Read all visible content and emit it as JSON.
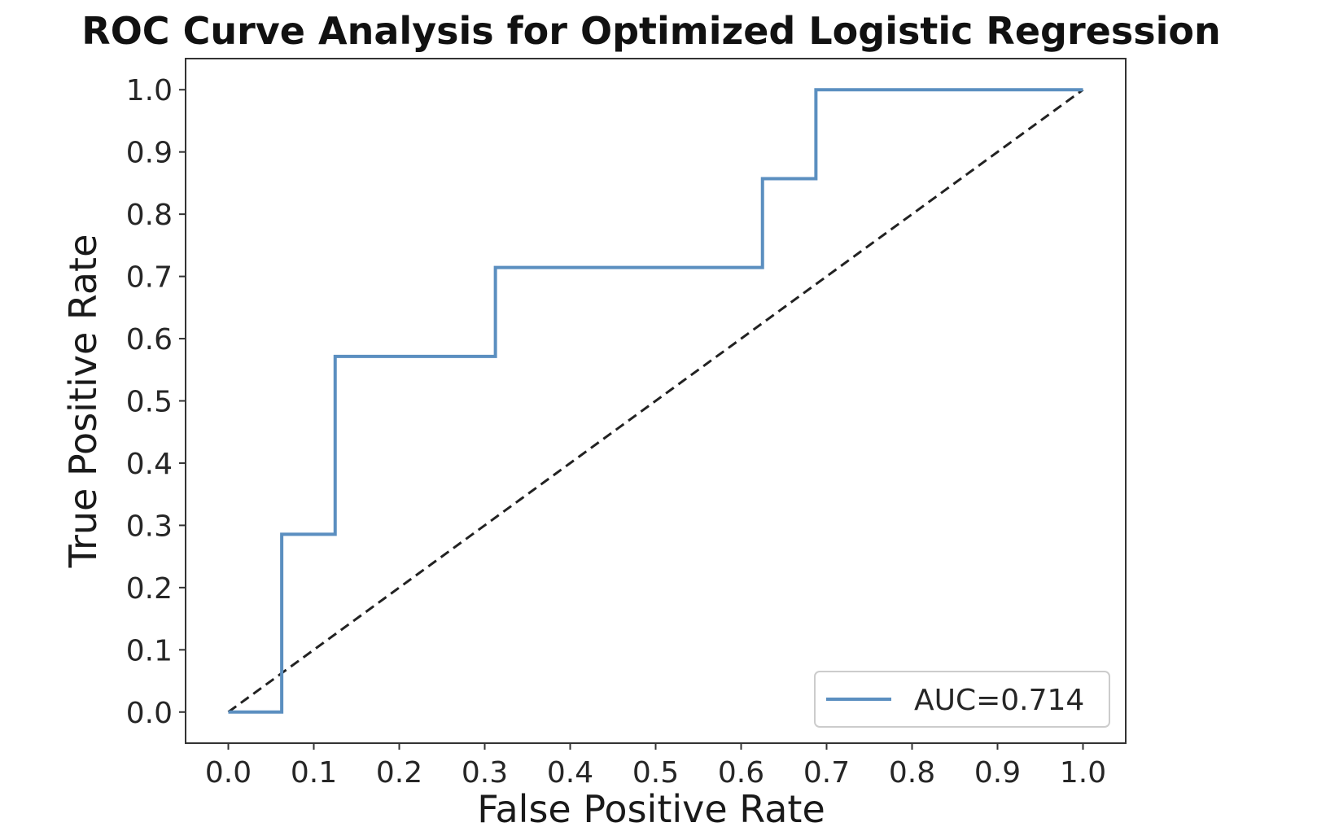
{
  "chart_data": {
    "type": "line",
    "title": "ROC Curve Analysis for Optimized Logistic Regression",
    "xlabel": "False Positive Rate",
    "ylabel": "True Positive Rate",
    "xlim": [
      -0.05,
      1.05
    ],
    "ylim": [
      -0.05,
      1.05
    ],
    "xticks": [
      "0.0",
      "0.1",
      "0.2",
      "0.3",
      "0.4",
      "0.5",
      "0.6",
      "0.7",
      "0.8",
      "0.9",
      "1.0"
    ],
    "yticks": [
      "0.0",
      "0.1",
      "0.2",
      "0.3",
      "0.4",
      "0.5",
      "0.6",
      "0.7",
      "0.8",
      "0.9",
      "1.0"
    ],
    "grid": false,
    "legend_position": "lower-right",
    "series": [
      {
        "name": "AUC=0.714",
        "color": "#5b8fc0",
        "style": "solid",
        "x": [
          0.0,
          0.0625,
          0.0625,
          0.125,
          0.125,
          0.3125,
          0.3125,
          0.625,
          0.625,
          0.6875,
          0.6875,
          1.0
        ],
        "y": [
          0.0,
          0.0,
          0.2857,
          0.2857,
          0.5714,
          0.5714,
          0.7143,
          0.7143,
          0.8571,
          0.8571,
          1.0,
          1.0
        ]
      },
      {
        "color": "#222222",
        "style": "dashed",
        "x": [
          0.0,
          1.0
        ],
        "y": [
          0.0,
          1.0
        ]
      }
    ]
  }
}
